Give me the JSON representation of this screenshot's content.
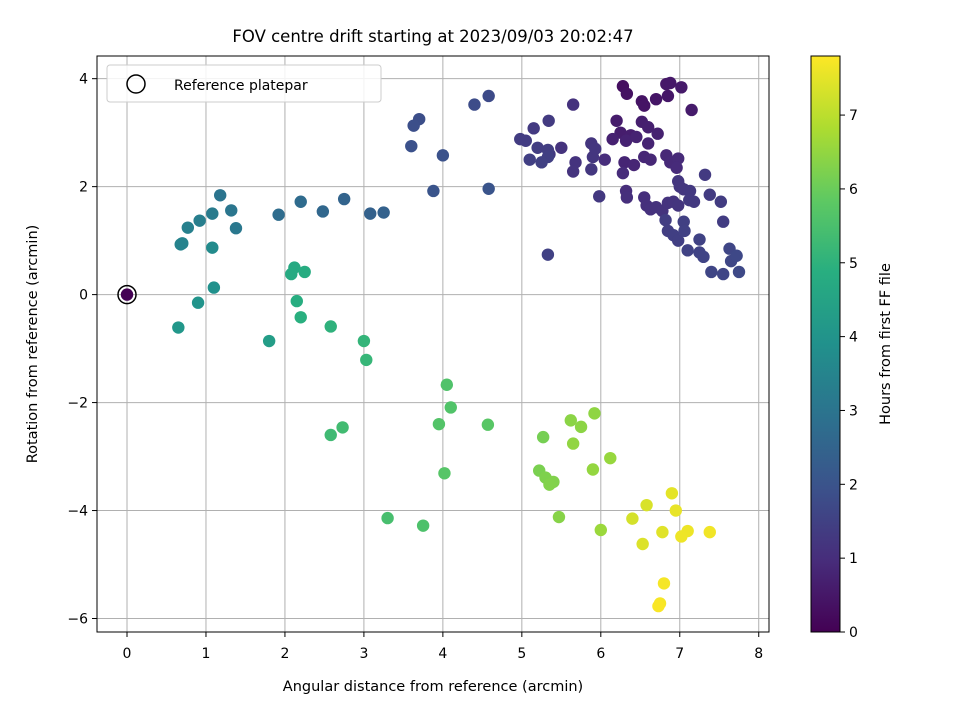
{
  "chart_data": {
    "type": "scatter",
    "title": "FOV centre drift starting at 2023/09/03 20:02:47",
    "xlabel": "Angular distance from reference (arcmin)",
    "ylabel": "Rotation from reference (arcmin)",
    "xlim": [
      -0.38,
      8.13
    ],
    "ylim": [
      -6.25,
      4.42
    ],
    "xticks": [
      0,
      1,
      2,
      3,
      4,
      5,
      6,
      7,
      8
    ],
    "yticks": [
      -6,
      -4,
      -2,
      0,
      2,
      4
    ],
    "xtick_labels": [
      "0",
      "1",
      "2",
      "3",
      "4",
      "5",
      "6",
      "7",
      "8"
    ],
    "ytick_labels": [
      "−6",
      "−4",
      "−2",
      "0",
      "2",
      "4"
    ],
    "grid": true,
    "legend": {
      "placement": "top-left",
      "entries": [
        "Reference platepar"
      ]
    },
    "colorbar": {
      "label": "Hours from first FF file",
      "colormap": "viridis",
      "range": [
        0,
        7.8
      ],
      "ticks": [
        0,
        1,
        2,
        3,
        4,
        5,
        6,
        7
      ],
      "tick_labels": [
        "0",
        "1",
        "2",
        "3",
        "4",
        "5",
        "6",
        "7"
      ]
    },
    "reference_point": {
      "x": 0,
      "y": 0,
      "name": "Reference platepar"
    },
    "points": [
      {
        "x": 0,
        "y": 0,
        "t": 0.0
      },
      {
        "x": 6.28,
        "y": 3.86,
        "t": 0.3
      },
      {
        "x": 6.33,
        "y": 3.72,
        "t": 0.35
      },
      {
        "x": 6.52,
        "y": 3.58,
        "t": 0.4
      },
      {
        "x": 6.55,
        "y": 3.5,
        "t": 0.42
      },
      {
        "x": 6.7,
        "y": 3.62,
        "t": 0.45
      },
      {
        "x": 6.85,
        "y": 3.68,
        "t": 0.47
      },
      {
        "x": 6.83,
        "y": 3.9,
        "t": 0.5
      },
      {
        "x": 6.88,
        "y": 3.92,
        "t": 0.52
      },
      {
        "x": 7.02,
        "y": 3.84,
        "t": 0.55
      },
      {
        "x": 7.15,
        "y": 3.42,
        "t": 0.57
      },
      {
        "x": 6.2,
        "y": 3.22,
        "t": 0.6
      },
      {
        "x": 6.25,
        "y": 3.0,
        "t": 0.62
      },
      {
        "x": 6.38,
        "y": 2.95,
        "t": 0.64
      },
      {
        "x": 6.52,
        "y": 3.2,
        "t": 0.66
      },
      {
        "x": 6.6,
        "y": 3.1,
        "t": 0.68
      },
      {
        "x": 6.72,
        "y": 2.98,
        "t": 0.7
      },
      {
        "x": 6.15,
        "y": 2.88,
        "t": 0.72
      },
      {
        "x": 6.32,
        "y": 2.85,
        "t": 0.74
      },
      {
        "x": 6.45,
        "y": 2.92,
        "t": 0.76
      },
      {
        "x": 6.6,
        "y": 2.8,
        "t": 0.78
      },
      {
        "x": 6.3,
        "y": 2.45,
        "t": 0.8
      },
      {
        "x": 6.42,
        "y": 2.4,
        "t": 0.82
      },
      {
        "x": 6.55,
        "y": 2.55,
        "t": 0.84
      },
      {
        "x": 6.63,
        "y": 2.5,
        "t": 0.86
      },
      {
        "x": 6.83,
        "y": 2.58,
        "t": 0.88
      },
      {
        "x": 6.88,
        "y": 2.45,
        "t": 0.9
      },
      {
        "x": 6.98,
        "y": 2.52,
        "t": 0.92
      },
      {
        "x": 6.96,
        "y": 2.35,
        "t": 0.94
      },
      {
        "x": 6.28,
        "y": 2.25,
        "t": 0.96
      },
      {
        "x": 6.05,
        "y": 2.5,
        "t": 0.98
      },
      {
        "x": 6.32,
        "y": 1.92,
        "t": 1.0
      },
      {
        "x": 6.33,
        "y": 1.8,
        "t": 1.02
      },
      {
        "x": 6.55,
        "y": 1.8,
        "t": 1.04
      },
      {
        "x": 6.58,
        "y": 1.65,
        "t": 1.06
      },
      {
        "x": 6.63,
        "y": 1.58,
        "t": 1.08
      },
      {
        "x": 6.7,
        "y": 1.62,
        "t": 1.1
      },
      {
        "x": 6.78,
        "y": 1.55,
        "t": 1.12
      },
      {
        "x": 6.85,
        "y": 1.7,
        "t": 1.14
      },
      {
        "x": 6.92,
        "y": 1.72,
        "t": 1.16
      },
      {
        "x": 6.98,
        "y": 1.65,
        "t": 1.18
      },
      {
        "x": 6.98,
        "y": 2.1,
        "t": 1.2
      },
      {
        "x": 7.0,
        "y": 2.0,
        "t": 1.22
      },
      {
        "x": 7.05,
        "y": 1.95,
        "t": 1.24
      },
      {
        "x": 7.13,
        "y": 1.92,
        "t": 1.26
      },
      {
        "x": 7.12,
        "y": 1.75,
        "t": 1.28
      },
      {
        "x": 7.18,
        "y": 1.72,
        "t": 1.3
      },
      {
        "x": 7.32,
        "y": 2.22,
        "t": 1.32
      },
      {
        "x": 7.38,
        "y": 1.85,
        "t": 1.34
      },
      {
        "x": 7.52,
        "y": 1.72,
        "t": 1.36
      },
      {
        "x": 7.55,
        "y": 1.35,
        "t": 1.38
      },
      {
        "x": 6.82,
        "y": 1.38,
        "t": 1.4
      },
      {
        "x": 6.85,
        "y": 1.18,
        "t": 1.42
      },
      {
        "x": 6.92,
        "y": 1.1,
        "t": 1.44
      },
      {
        "x": 6.98,
        "y": 1.0,
        "t": 1.46
      },
      {
        "x": 7.05,
        "y": 1.35,
        "t": 1.48
      },
      {
        "x": 7.06,
        "y": 1.18,
        "t": 1.5
      },
      {
        "x": 7.1,
        "y": 0.82,
        "t": 1.52
      },
      {
        "x": 7.25,
        "y": 1.02,
        "t": 1.54
      },
      {
        "x": 7.25,
        "y": 0.78,
        "t": 1.56
      },
      {
        "x": 7.3,
        "y": 0.7,
        "t": 1.58
      },
      {
        "x": 7.4,
        "y": 0.42,
        "t": 1.6
      },
      {
        "x": 7.55,
        "y": 0.38,
        "t": 1.62
      },
      {
        "x": 7.63,
        "y": 0.85,
        "t": 1.64
      },
      {
        "x": 7.65,
        "y": 0.62,
        "t": 1.66
      },
      {
        "x": 7.72,
        "y": 0.72,
        "t": 1.68
      },
      {
        "x": 7.75,
        "y": 0.42,
        "t": 1.7
      },
      {
        "x": 5.65,
        "y": 3.52,
        "t": 1.1
      },
      {
        "x": 5.5,
        "y": 2.72,
        "t": 1.12
      },
      {
        "x": 5.68,
        "y": 2.45,
        "t": 1.14
      },
      {
        "x": 5.65,
        "y": 2.28,
        "t": 1.16
      },
      {
        "x": 5.88,
        "y": 2.8,
        "t": 1.18
      },
      {
        "x": 5.9,
        "y": 2.55,
        "t": 1.2
      },
      {
        "x": 5.93,
        "y": 2.7,
        "t": 1.22
      },
      {
        "x": 5.88,
        "y": 2.32,
        "t": 1.24
      },
      {
        "x": 5.98,
        "y": 1.82,
        "t": 1.26
      },
      {
        "x": 5.35,
        "y": 2.6,
        "t": 1.28
      },
      {
        "x": 5.15,
        "y": 3.08,
        "t": 1.32
      },
      {
        "x": 5.34,
        "y": 3.22,
        "t": 1.34
      },
      {
        "x": 4.98,
        "y": 2.88,
        "t": 1.36
      },
      {
        "x": 5.05,
        "y": 2.85,
        "t": 1.38
      },
      {
        "x": 5.2,
        "y": 2.72,
        "t": 1.4
      },
      {
        "x": 5.33,
        "y": 2.68,
        "t": 1.42
      },
      {
        "x": 5.33,
        "y": 2.55,
        "t": 1.44
      },
      {
        "x": 5.1,
        "y": 2.5,
        "t": 1.46
      },
      {
        "x": 5.25,
        "y": 2.45,
        "t": 1.48
      },
      {
        "x": 5.33,
        "y": 0.74,
        "t": 1.5
      },
      {
        "x": 4.58,
        "y": 3.68,
        "t": 1.75
      },
      {
        "x": 4.4,
        "y": 3.52,
        "t": 1.8
      },
      {
        "x": 3.7,
        "y": 3.25,
        "t": 1.85
      },
      {
        "x": 3.63,
        "y": 3.13,
        "t": 1.88
      },
      {
        "x": 3.6,
        "y": 2.75,
        "t": 1.92
      },
      {
        "x": 4.0,
        "y": 2.58,
        "t": 1.95
      },
      {
        "x": 3.88,
        "y": 1.92,
        "t": 2.0
      },
      {
        "x": 4.58,
        "y": 1.96,
        "t": 2.02
      },
      {
        "x": 3.08,
        "y": 1.5,
        "t": 2.4
      },
      {
        "x": 3.25,
        "y": 1.52,
        "t": 2.42
      },
      {
        "x": 2.75,
        "y": 1.77,
        "t": 2.5
      },
      {
        "x": 2.48,
        "y": 1.54,
        "t": 2.6
      },
      {
        "x": 2.2,
        "y": 1.72,
        "t": 2.7
      },
      {
        "x": 1.92,
        "y": 1.48,
        "t": 2.75
      },
      {
        "x": 1.18,
        "y": 1.84,
        "t": 3.0
      },
      {
        "x": 1.32,
        "y": 1.56,
        "t": 3.05
      },
      {
        "x": 1.38,
        "y": 1.23,
        "t": 3.1
      },
      {
        "x": 1.08,
        "y": 1.5,
        "t": 3.2
      },
      {
        "x": 0.92,
        "y": 1.37,
        "t": 3.3
      },
      {
        "x": 0.77,
        "y": 1.24,
        "t": 3.35
      },
      {
        "x": 0.68,
        "y": 0.93,
        "t": 3.45
      },
      {
        "x": 0.7,
        "y": 0.95,
        "t": 3.45
      },
      {
        "x": 1.08,
        "y": 0.87,
        "t": 3.7
      },
      {
        "x": 1.1,
        "y": 0.13,
        "t": 3.9
      },
      {
        "x": 0.9,
        "y": -0.15,
        "t": 4.0
      },
      {
        "x": 0.65,
        "y": -0.61,
        "t": 4.1
      },
      {
        "x": 1.8,
        "y": -0.86,
        "t": 4.3
      },
      {
        "x": 2.12,
        "y": 0.5,
        "t": 4.7
      },
      {
        "x": 2.08,
        "y": 0.38,
        "t": 4.75
      },
      {
        "x": 2.25,
        "y": 0.42,
        "t": 4.8
      },
      {
        "x": 2.15,
        "y": -0.12,
        "t": 4.85
      },
      {
        "x": 2.2,
        "y": -0.42,
        "t": 4.9
      },
      {
        "x": 2.58,
        "y": -0.59,
        "t": 5.0
      },
      {
        "x": 3.0,
        "y": -0.86,
        "t": 5.1
      },
      {
        "x": 3.03,
        "y": -1.21,
        "t": 5.15
      },
      {
        "x": 2.58,
        "y": -2.6,
        "t": 5.3
      },
      {
        "x": 2.73,
        "y": -2.46,
        "t": 5.35
      },
      {
        "x": 3.3,
        "y": -4.14,
        "t": 5.45
      },
      {
        "x": 3.75,
        "y": -4.28,
        "t": 5.55
      },
      {
        "x": 4.05,
        "y": -1.67,
        "t": 5.6
      },
      {
        "x": 4.1,
        "y": -2.09,
        "t": 5.62
      },
      {
        "x": 3.95,
        "y": -2.4,
        "t": 5.65
      },
      {
        "x": 4.02,
        "y": -3.31,
        "t": 5.7
      },
      {
        "x": 4.57,
        "y": -2.41,
        "t": 5.75
      },
      {
        "x": 5.27,
        "y": -2.64,
        "t": 6.15
      },
      {
        "x": 5.22,
        "y": -3.26,
        "t": 6.2
      },
      {
        "x": 5.3,
        "y": -3.39,
        "t": 6.25
      },
      {
        "x": 5.4,
        "y": -3.47,
        "t": 6.28
      },
      {
        "x": 5.35,
        "y": -3.52,
        "t": 6.3
      },
      {
        "x": 5.47,
        "y": -4.12,
        "t": 6.35
      },
      {
        "x": 5.62,
        "y": -2.33,
        "t": 6.4
      },
      {
        "x": 5.75,
        "y": -2.45,
        "t": 6.42
      },
      {
        "x": 5.92,
        "y": -2.2,
        "t": 6.45
      },
      {
        "x": 5.65,
        "y": -2.76,
        "t": 6.48
      },
      {
        "x": 5.9,
        "y": -3.24,
        "t": 6.52
      },
      {
        "x": 6.12,
        "y": -3.03,
        "t": 6.55
      },
      {
        "x": 6.0,
        "y": -4.36,
        "t": 6.6
      },
      {
        "x": 6.4,
        "y": -4.15,
        "t": 7.3
      },
      {
        "x": 6.58,
        "y": -3.9,
        "t": 7.35
      },
      {
        "x": 6.53,
        "y": -4.62,
        "t": 7.4
      },
      {
        "x": 6.78,
        "y": -4.4,
        "t": 7.45
      },
      {
        "x": 6.9,
        "y": -3.68,
        "t": 7.5
      },
      {
        "x": 6.95,
        "y": -4.0,
        "t": 7.55
      },
      {
        "x": 7.1,
        "y": -4.38,
        "t": 7.6
      },
      {
        "x": 7.02,
        "y": -4.48,
        "t": 7.62
      },
      {
        "x": 7.38,
        "y": -4.4,
        "t": 7.65
      },
      {
        "x": 6.8,
        "y": -5.35,
        "t": 7.7
      },
      {
        "x": 6.75,
        "y": -5.72,
        "t": 7.72
      },
      {
        "x": 6.73,
        "y": -5.77,
        "t": 7.75
      }
    ]
  }
}
